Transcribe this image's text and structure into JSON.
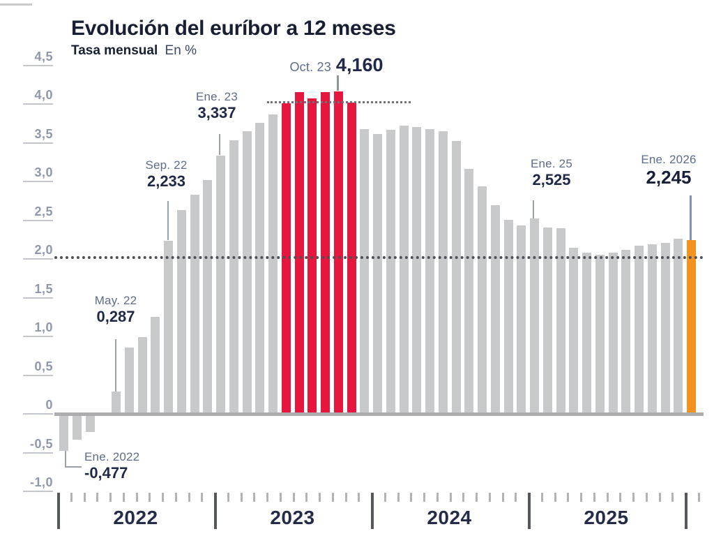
{
  "header": {
    "title": "Evolución del euríbor a 12 meses",
    "subtitle_bold": "Tasa mensual",
    "subtitle_unit": "En %"
  },
  "chart_data": {
    "type": "bar",
    "title": "Evolución del euríbor a 12 meses",
    "subtitle": "Tasa mensual En %",
    "unit": "%",
    "ylim": [
      -1.0,
      4.5
    ],
    "y_ticks": [
      {
        "label": "4,5",
        "value": 4.5
      },
      {
        "label": "4,0",
        "value": 4.0
      },
      {
        "label": "3,5",
        "value": 3.5
      },
      {
        "label": "3,0",
        "value": 3.0
      },
      {
        "label": "2,5",
        "value": 2.5
      },
      {
        "label": "2,0",
        "value": 2.0
      },
      {
        "label": "1,5",
        "value": 1.5
      },
      {
        "label": "1,0",
        "value": 1.0
      },
      {
        "label": "0,5",
        "value": 0.5
      },
      {
        "label": "0",
        "value": 0.0
      },
      {
        "label": "-0,5",
        "value": -0.5
      },
      {
        "label": "-1,0",
        "value": -1.0
      }
    ],
    "x_years": [
      "2022",
      "2023",
      "2024",
      "2025"
    ],
    "categories": [
      "Ene. 2022",
      "Feb. 2022",
      "Mar. 2022",
      "Abr. 2022",
      "May. 2022",
      "Jun. 2022",
      "Jul. 2022",
      "Ago. 2022",
      "Sep. 2022",
      "Oct. 2022",
      "Nov. 2022",
      "Dic. 2022",
      "Ene. 2023",
      "Feb. 2023",
      "Mar. 2023",
      "Abr. 2023",
      "May. 2023",
      "Jun. 2023",
      "Jul. 2023",
      "Ago. 2023",
      "Sep. 2023",
      "Oct. 2023",
      "Nov. 2023",
      "Dic. 2023",
      "Ene. 2024",
      "Feb. 2024",
      "Mar. 2024",
      "Abr. 2024",
      "May. 2024",
      "Jun. 2024",
      "Jul. 2024",
      "Ago. 2024",
      "Sep. 2024",
      "Oct. 2024",
      "Nov. 2024",
      "Dic. 2024",
      "Ene. 2025",
      "Feb. 2025",
      "Mar. 2025",
      "Abr. 2025",
      "May. 2025",
      "Jun. 2025",
      "Jul. 2025",
      "Ago. 2025",
      "Sep. 2025",
      "Oct. 2025",
      "Nov. 2025",
      "Dic. 2025",
      "Ene. 2026"
    ],
    "values": [
      -0.477,
      -0.335,
      -0.237,
      0.013,
      0.287,
      0.852,
      0.992,
      1.249,
      2.233,
      2.629,
      2.828,
      3.018,
      3.337,
      3.534,
      3.647,
      3.757,
      3.862,
      4.007,
      4.149,
      4.073,
      4.149,
      4.16,
      4.022,
      3.679,
      3.609,
      3.671,
      3.718,
      3.703,
      3.68,
      3.65,
      3.526,
      3.166,
      2.936,
      2.691,
      2.506,
      2.436,
      2.525,
      2.407,
      2.398,
      2.143,
      2.081,
      2.054,
      2.079,
      2.114,
      2.172,
      2.187,
      2.21,
      2.262,
      2.245
    ],
    "colors": {
      "default": "#c8c9ca",
      "peak": "#e5173f",
      "latest": "#f6921e",
      "pointer_gray": "#9aa0a8",
      "pointer_blue": "#7f90c4"
    },
    "red_indices": [
      17,
      18,
      19,
      20,
      21,
      22
    ],
    "orange_index": 48,
    "reference_lines": [
      {
        "value": 4.0,
        "style": "dotted",
        "extent": "peak-region"
      },
      {
        "value": 2.0,
        "style": "dotted",
        "extent": "full-width"
      }
    ],
    "annotations": [
      {
        "label": "Ene. 2022",
        "value": "-0,477",
        "value_num": -0.477
      },
      {
        "label": "May. 22",
        "value": "0,287",
        "value_num": 0.287
      },
      {
        "label": "Sep. 22",
        "value": "2,233",
        "value_num": 2.233
      },
      {
        "label": "Ene. 23",
        "value": "3,337",
        "value_num": 3.337
      },
      {
        "label": "Oct. 23",
        "value": "4,160",
        "value_num": 4.16
      },
      {
        "label": "Ene. 25",
        "value": "2,525",
        "value_num": 2.525
      },
      {
        "label": "Ene. 2026",
        "value": "2,245",
        "value_num": 2.245
      }
    ]
  }
}
